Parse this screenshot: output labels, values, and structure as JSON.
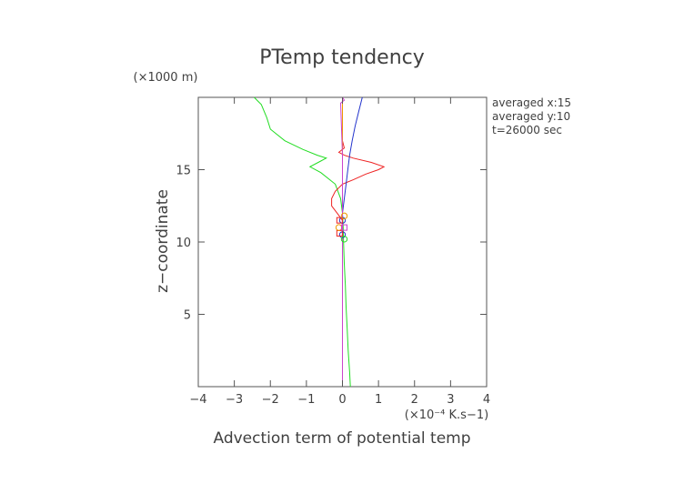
{
  "chart_data": {
    "type": "line",
    "title": "PTemp tendency",
    "xlabel": "Advection term of potential temp",
    "x_unit_label": "(×10⁻⁴ K.s−1)",
    "ylabel": "z−coordinate",
    "y_unit_label": "(×1000 m)",
    "xlim": [
      -4,
      4
    ],
    "ylim": [
      0,
      20
    ],
    "x_ticks": [
      -4,
      -3,
      -2,
      -1,
      0,
      1,
      2,
      3,
      4
    ],
    "x_tick_labels": [
      "−4",
      "−3",
      "−2",
      "−1",
      "0",
      "1",
      "2",
      "3",
      "4"
    ],
    "y_ticks": [
      5,
      10,
      15
    ],
    "y_tick_labels": [
      "5",
      "10",
      "15"
    ],
    "annotations": [
      "averaged  x:15",
      "averaged  y:10",
      "t=26000 sec"
    ],
    "series": [
      {
        "name": "green",
        "color": "#22dd22",
        "points": [
          [
            0.22,
            0.0
          ],
          [
            0.2,
            1.0
          ],
          [
            0.16,
            2.5
          ],
          [
            0.13,
            4.0
          ],
          [
            0.1,
            5.5
          ],
          [
            0.08,
            7.0
          ],
          [
            0.05,
            8.5
          ],
          [
            0.03,
            10.0
          ],
          [
            0.02,
            11.0
          ],
          [
            0.0,
            12.0
          ],
          [
            -0.05,
            13.0
          ],
          [
            -0.2,
            14.0
          ],
          [
            -0.6,
            14.8
          ],
          [
            -0.9,
            15.2
          ],
          [
            -0.6,
            15.6
          ],
          [
            -0.45,
            15.8
          ],
          [
            -0.7,
            16.0
          ],
          [
            -1.1,
            16.4
          ],
          [
            -1.6,
            17.0
          ],
          [
            -2.0,
            17.8
          ],
          [
            -2.1,
            18.6
          ],
          [
            -2.25,
            19.5
          ],
          [
            -2.45,
            20.0
          ]
        ]
      },
      {
        "name": "red",
        "color": "#ee2222",
        "points": [
          [
            0.0,
            0.0
          ],
          [
            0.0,
            5.0
          ],
          [
            0.0,
            10.0
          ],
          [
            0.0,
            11.5
          ],
          [
            -0.15,
            12.0
          ],
          [
            -0.3,
            12.5
          ],
          [
            -0.3,
            13.0
          ],
          [
            -0.2,
            13.5
          ],
          [
            0.0,
            14.0
          ],
          [
            0.3,
            14.3
          ],
          [
            0.65,
            14.7
          ],
          [
            1.0,
            15.0
          ],
          [
            1.15,
            15.2
          ],
          [
            0.8,
            15.5
          ],
          [
            0.3,
            15.8
          ],
          [
            0.05,
            16.0
          ],
          [
            -0.1,
            16.2
          ],
          [
            0.05,
            16.5
          ],
          [
            0.0,
            17.0
          ],
          [
            0.0,
            18.0
          ],
          [
            0.0,
            19.0
          ],
          [
            0.0,
            20.0
          ]
        ]
      },
      {
        "name": "blue",
        "color": "#2233cc",
        "points": [
          [
            0.0,
            0.0
          ],
          [
            0.0,
            5.0
          ],
          [
            0.0,
            10.0
          ],
          [
            0.0,
            12.0
          ],
          [
            0.05,
            13.0
          ],
          [
            0.1,
            14.0
          ],
          [
            0.15,
            15.0
          ],
          [
            0.2,
            16.0
          ],
          [
            0.27,
            17.0
          ],
          [
            0.35,
            18.0
          ],
          [
            0.45,
            19.0
          ],
          [
            0.55,
            20.0
          ]
        ]
      },
      {
        "name": "orange",
        "color": "#ee9900",
        "points": [
          [
            0.0,
            0.0
          ],
          [
            0.0,
            5.0
          ],
          [
            0.0,
            10.0
          ],
          [
            0.0,
            15.0
          ],
          [
            0.0,
            20.0
          ]
        ]
      },
      {
        "name": "magenta",
        "color": "#cc44cc",
        "points": [
          [
            0.0,
            0.0
          ],
          [
            0.0,
            10.0
          ],
          [
            0.0,
            16.0
          ],
          [
            -0.05,
            19.6
          ],
          [
            0.05,
            19.8
          ],
          [
            0.0,
            20.0
          ]
        ]
      }
    ],
    "markers": [
      {
        "type": "circle",
        "color": "#2233cc",
        "x": 0.0,
        "y": 11.5
      },
      {
        "type": "circle",
        "color": "#2233cc",
        "x": 0.0,
        "y": 10.5
      },
      {
        "type": "square",
        "color": "#ee2222",
        "x": -0.08,
        "y": 11.5
      },
      {
        "type": "square",
        "color": "#ee2222",
        "x": -0.08,
        "y": 10.6
      },
      {
        "type": "circle",
        "color": "#ee9900",
        "x": -0.1,
        "y": 11.0
      },
      {
        "type": "circle",
        "color": "#22dd22",
        "x": 0.05,
        "y": 10.2
      },
      {
        "type": "square",
        "color": "#cc44cc",
        "x": 0.05,
        "y": 11.0
      },
      {
        "type": "circle",
        "color": "#ee9900",
        "x": 0.05,
        "y": 11.8
      }
    ]
  }
}
